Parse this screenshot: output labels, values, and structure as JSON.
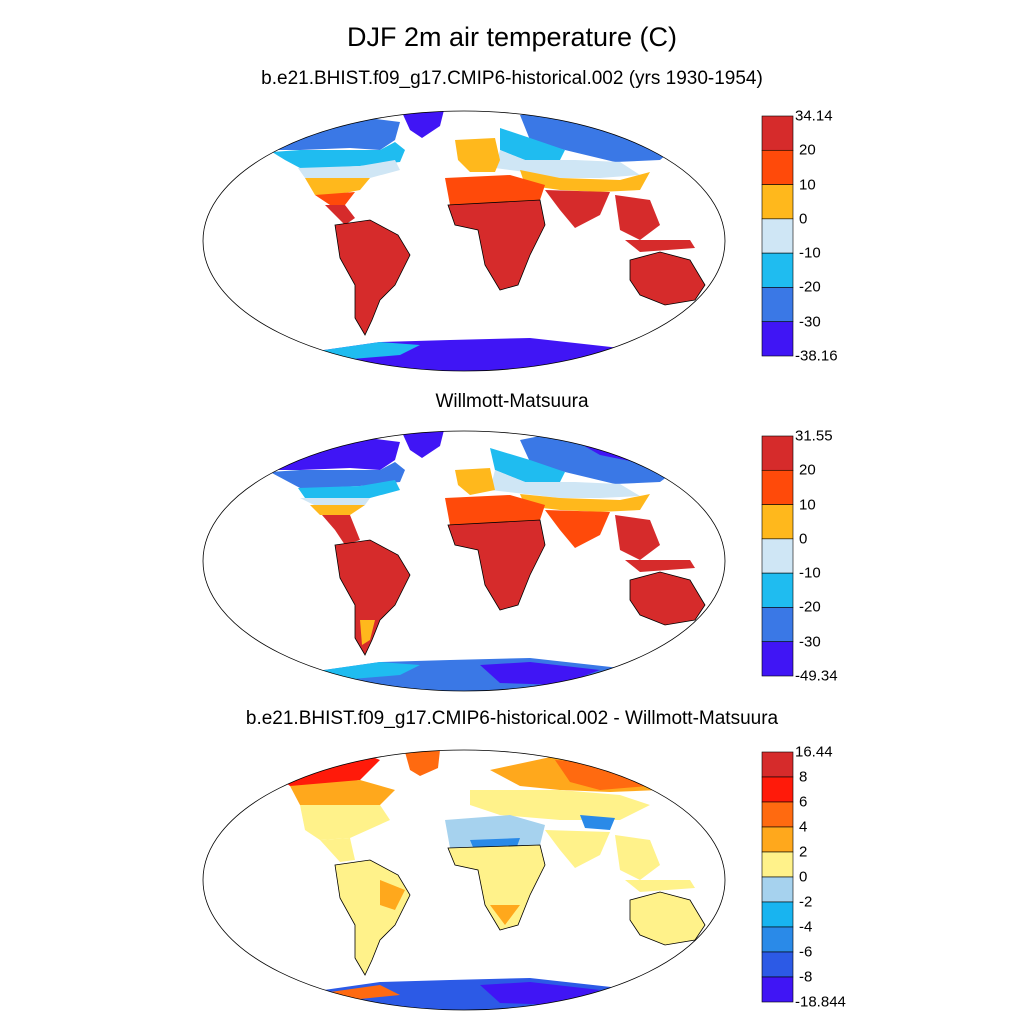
{
  "title": "DJF 2m air temperature (C)",
  "panels": [
    {
      "title": "b.e21.BHIST.f09_g17.CMIP6-historical.002 (yrs 1930-1954)",
      "colorbar": {
        "labels": [
          "34.14",
          "20",
          "10",
          "0",
          "-10",
          "-20",
          "-30",
          "-38.16"
        ],
        "colors": [
          "#d62b2b",
          "#ff4a0a",
          "#ffb81c",
          "#cfe6f5",
          "#1fbcf0",
          "#3a78e6",
          "#4015f5"
        ]
      }
    },
    {
      "title": "Willmott-Matsuura",
      "colorbar": {
        "labels": [
          "31.55",
          "20",
          "10",
          "0",
          "-10",
          "-20",
          "-30",
          "-49.34"
        ],
        "colors": [
          "#d62b2b",
          "#ff4a0a",
          "#ffb81c",
          "#cfe6f5",
          "#1fbcf0",
          "#3a78e6",
          "#4015f5"
        ]
      }
    },
    {
      "title": "b.e21.BHIST.f09_g17.CMIP6-historical.002 - Willmott-Matsuura",
      "colorbar": {
        "labels": [
          "16.44",
          "8",
          "6",
          "4",
          "2",
          "0",
          "-2",
          "-4",
          "-6",
          "-8",
          "-18.844"
        ],
        "colors": [
          "#d62b2b",
          "#ff1a0a",
          "#ff6a10",
          "#ffa81c",
          "#fff28a",
          "#a6d2ee",
          "#18b4f0",
          "#2a8ae8",
          "#2c5ae6",
          "#4015f5"
        ]
      }
    }
  ]
}
